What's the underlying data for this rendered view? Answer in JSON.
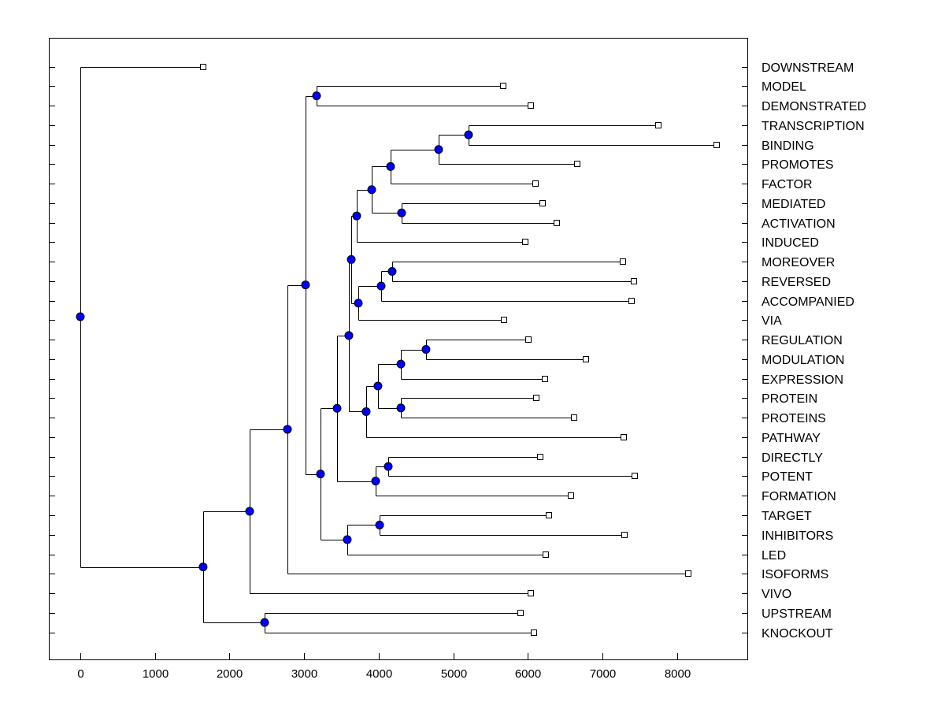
{
  "chart_data": {
    "type": "dendrogram",
    "title": "",
    "xlabel": "",
    "ylabel": "",
    "xlim": [
      -422,
      8950
    ],
    "xticks": [
      0,
      1000,
      2000,
      3000,
      4000,
      5000,
      6000,
      7000,
      8000
    ],
    "grid": false,
    "colors": {
      "node": "#0000ff",
      "line": "#000000",
      "leaf_marker": "#ffffff"
    },
    "tree": {
      "height": 0,
      "children": [
        {
          "label": "DOWNSTREAM",
          "height": 1646
        },
        {
          "height": 1646,
          "children": [
            {
              "height": 2269,
              "children": [
                {
                  "height": 2776,
                  "children": [
                    {
                      "height": 3018,
                      "children": [
                        {
                          "height": 3166,
                          "children": [
                            {
                              "label": "MODEL",
                              "height": 5668
                            },
                            {
                              "label": "DEMONSTRATED",
                              "height": 6037
                            }
                          ]
                        },
                        {
                          "height": 3219,
                          "children": [
                            {
                              "height": 3441,
                              "children": [
                                {
                                  "height": 3599,
                                  "children": [
                                    {
                                      "height": 3631,
                                      "children": [
                                        {
                                          "height": 3704,
                                          "children": [
                                            {
                                              "height": 3905,
                                              "children": [
                                                {
                                                  "height": 4158,
                                                  "children": [
                                                    {
                                                      "height": 4802,
                                                      "children": [
                                                        {
                                                          "height": 5203,
                                                          "children": [
                                                            {
                                                              "label": "TRANSCRIPTION",
                                                              "height": 7747
                                                            },
                                                            {
                                                              "label": "BINDING",
                                                              "height": 8528
                                                            }
                                                          ]
                                                        },
                                                        {
                                                          "label": "PROMOTES",
                                                          "height": 6660
                                                        }
                                                      ]
                                                    },
                                                    {
                                                      "label": "FACTOR",
                                                      "height": 6100
                                                    }
                                                  ]
                                                },
                                                {
                                                  "height": 4306,
                                                  "children": [
                                                    {
                                                      "label": "MEDIATED",
                                                      "height": 6195
                                                    },
                                                    {
                                                      "label": "ACTIVATION",
                                                      "height": 6385
                                                    }
                                                  ]
                                                }
                                              ]
                                            },
                                            {
                                              "label": "INDUCED",
                                              "height": 5963
                                            }
                                          ]
                                        },
                                        {
                                          "height": 3726,
                                          "children": [
                                            {
                                              "height": 4032,
                                              "children": [
                                                {
                                                  "height": 4179,
                                                  "children": [
                                                    {
                                                      "label": "MOREOVER",
                                                      "height": 7272
                                                    },
                                                    {
                                                      "label": "REVERSED",
                                                      "height": 7420
                                                    }
                                                  ]
                                                },
                                                {
                                                  "label": "ACCOMPANIED",
                                                  "height": 7388
                                                }
                                              ]
                                            },
                                            {
                                              "label": "VIA",
                                              "height": 5678
                                            }
                                          ]
                                        }
                                      ]
                                    },
                                    {
                                      "height": 3831,
                                      "children": [
                                        {
                                          "height": 3989,
                                          "children": [
                                            {
                                              "height": 4296,
                                              "children": [
                                                {
                                                  "height": 4633,
                                                  "children": [
                                                    {
                                                      "label": "REGULATION",
                                                      "height": 6005
                                                    },
                                                    {
                                                      "label": "MODULATION",
                                                      "height": 6776
                                                    }
                                                  ]
                                                },
                                                {
                                                  "label": "EXPRESSION",
                                                  "height": 6227
                                                }
                                              ]
                                            },
                                            {
                                              "height": 4296,
                                              "children": [
                                                {
                                                  "label": "PROTEIN",
                                                  "height": 6111
                                                },
                                                {
                                                  "label": "PROTEINS",
                                                  "height": 6617
                                                }
                                              ]
                                            }
                                          ]
                                        },
                                        {
                                          "label": "PATHWAY",
                                          "height": 7282
                                        }
                                      ]
                                    }
                                  ]
                                },
                                {
                                  "height": 3958,
                                  "children": [
                                    {
                                      "height": 4127,
                                      "children": [
                                        {
                                          "label": "DIRECTLY",
                                          "height": 6164
                                        },
                                        {
                                          "label": "POTENT",
                                          "height": 7430
                                        }
                                      ]
                                    },
                                    {
                                      "label": "FORMATION",
                                      "height": 6575
                                    }
                                  ]
                                }
                              ]
                            },
                            {
                              "height": 3578,
                              "children": [
                                {
                                  "height": 4011,
                                  "children": [
                                    {
                                      "label": "TARGET",
                                      "height": 6280
                                    },
                                    {
                                      "label": "INHIBITORS",
                                      "height": 7293
                                    }
                                  ]
                                },
                                {
                                  "label": "LED",
                                  "height": 6237
                                }
                              ]
                            }
                          ]
                        }
                      ]
                    },
                    {
                      "label": "ISOFORMS",
                      "height": 8148
                    }
                  ]
                },
                {
                  "label": "VIVO",
                  "height": 6037
                }
              ]
            },
            {
              "height": 2470,
              "children": [
                {
                  "label": "UPSTREAM",
                  "height": 5900
                },
                {
                  "label": "KNOCKOUT",
                  "height": 6079
                }
              ]
            }
          ]
        }
      ]
    }
  }
}
